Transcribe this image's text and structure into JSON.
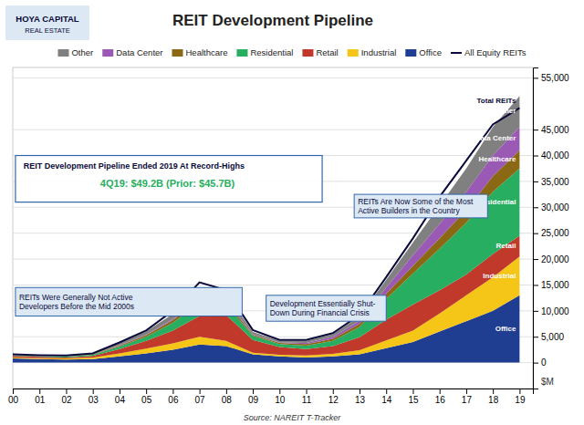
{
  "chart_data": {
    "type": "area",
    "stacked": true,
    "title": "REIT Development Pipeline",
    "ylabel": "$M",
    "x": [
      2000,
      2001,
      2002,
      2003,
      2004,
      2005,
      2006,
      2007,
      2008,
      2009,
      2010,
      2011,
      2012,
      2013,
      2014,
      2015,
      2016,
      2017,
      2018,
      2019
    ],
    "xlim": [
      2000,
      2019.5
    ],
    "xticks": [
      {
        "value": 2000,
        "label": "00"
      },
      {
        "value": 2001,
        "label": "01"
      },
      {
        "value": 2002,
        "label": "02"
      },
      {
        "value": 2003,
        "label": "03"
      },
      {
        "value": 2004,
        "label": "04"
      },
      {
        "value": 2005,
        "label": "05"
      },
      {
        "value": 2006,
        "label": "06"
      },
      {
        "value": 2007,
        "label": "07"
      },
      {
        "value": 2008,
        "label": "08"
      },
      {
        "value": 2009,
        "label": "09"
      },
      {
        "value": 2010,
        "label": "10"
      },
      {
        "value": 2011,
        "label": "11"
      },
      {
        "value": 2012,
        "label": "12"
      },
      {
        "value": 2013,
        "label": "13"
      },
      {
        "value": 2014,
        "label": "14"
      },
      {
        "value": 2015,
        "label": "15"
      },
      {
        "value": 2016,
        "label": "16"
      },
      {
        "value": 2017,
        "label": "17"
      },
      {
        "value": 2018,
        "label": "18"
      },
      {
        "value": 2019,
        "label": "19"
      }
    ],
    "ylim": [
      -5000,
      57000
    ],
    "yticks": [
      0,
      {
        "value": 5000,
        "label": "5,000"
      },
      {
        "value": 10000,
        "label": "10,000"
      },
      {
        "value": 15000,
        "label": "15,000"
      },
      {
        "value": 20000,
        "label": "20,000"
      },
      {
        "value": 25000,
        "label": "25,000"
      },
      {
        "value": 30000,
        "label": "30,000"
      },
      {
        "value": 35000,
        "label": "35,000"
      },
      {
        "value": 40000,
        "label": "40,000"
      },
      {
        "value": 45000,
        "label": "45,000"
      },
      {
        "value": 55000,
        "label": "55,000"
      }
    ],
    "grid": true,
    "legend": "top",
    "series": [
      {
        "name": "Office",
        "type": "area",
        "color": "#1f3d91",
        "values": [
          800,
          700,
          600,
          700,
          1200,
          1800,
          2500,
          3500,
          3200,
          1600,
          1200,
          1000,
          1200,
          1600,
          2800,
          4000,
          6000,
          8000,
          10000,
          13000
        ]
      },
      {
        "name": "Industrial",
        "type": "area",
        "color": "#f5c518",
        "values": [
          200,
          150,
          200,
          300,
          600,
          900,
          1200,
          1500,
          1000,
          300,
          300,
          400,
          500,
          800,
          1500,
          2200,
          3500,
          5000,
          6500,
          7500
        ]
      },
      {
        "name": "Retail",
        "type": "area",
        "color": "#c0392b",
        "values": [
          300,
          250,
          200,
          300,
          800,
          1500,
          2500,
          4000,
          5000,
          2500,
          1500,
          1200,
          1500,
          2500,
          4000,
          5000,
          4500,
          4000,
          4500,
          4000
        ]
      },
      {
        "name": "Residential",
        "type": "area",
        "color": "#27ae60",
        "values": [
          100,
          100,
          150,
          200,
          500,
          800,
          1500,
          2500,
          2000,
          800,
          600,
          700,
          1000,
          2000,
          4000,
          6000,
          8000,
          10000,
          12000,
          13000
        ]
      },
      {
        "name": "Healthcare",
        "type": "area",
        "color": "#8b6914",
        "values": [
          50,
          50,
          50,
          100,
          200,
          300,
          500,
          800,
          600,
          200,
          200,
          300,
          400,
          600,
          1000,
          1500,
          2000,
          2500,
          3000,
          3500
        ]
      },
      {
        "name": "Data Center",
        "type": "area",
        "color": "#9b59b6",
        "values": [
          0,
          0,
          0,
          0,
          50,
          100,
          200,
          400,
          300,
          100,
          100,
          200,
          400,
          600,
          1200,
          2000,
          2800,
          3500,
          4000,
          4500
        ]
      },
      {
        "name": "Other",
        "type": "area",
        "color": "#808080",
        "values": [
          50,
          50,
          100,
          150,
          400,
          600,
          1000,
          1500,
          1200,
          400,
          300,
          400,
          500,
          800,
          1500,
          2500,
          3500,
          4500,
          5500,
          6000
        ]
      },
      {
        "name": "All Equity REITs",
        "type": "line",
        "color": "#0a0a3a",
        "values": [
          1600,
          1450,
          1400,
          1800,
          3900,
          6200,
          10000,
          15500,
          14000,
          6300,
          4400,
          4400,
          5700,
          9200,
          16500,
          24000,
          32000,
          39000,
          46000,
          49200
        ]
      }
    ],
    "annotations": [
      "Total REITs",
      "REITs Were Generally Not Active\nDevelopers Before the Mid 2000s",
      "Development Essentially Shut-\nDown During Financial Crisis",
      "REITs Are Now Some of the Most\nActive Builders in the Country",
      "REIT Development Pipeline Ended 2019 At Record-Highs",
      "4Q19: $49.2B (Prior: $45.7B)",
      "Source: NAREIT T-Tracker",
      "HOYA CAPITAL",
      "REAL ESTATE"
    ]
  }
}
